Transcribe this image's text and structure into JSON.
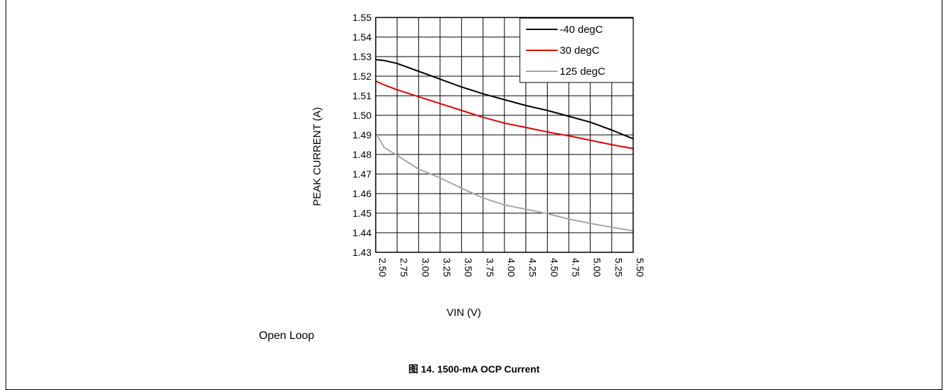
{
  "chart_data": {
    "type": "line",
    "xlabel": "VIN (V)",
    "ylabel": "PEAK CURRENT (A)",
    "xlim": [
      2.5,
      5.5
    ],
    "ylim": [
      1.43,
      1.55
    ],
    "xticks": [
      "2.50",
      "2.75",
      "3.00",
      "3.25",
      "3.50",
      "3.75",
      "4.00",
      "4.25",
      "4.50",
      "4.75",
      "5.00",
      "5.25",
      "5.50"
    ],
    "yticks": [
      "1.43",
      "1.44",
      "1.45",
      "1.46",
      "1.47",
      "1.48",
      "1.49",
      "1.50",
      "1.51",
      "1.52",
      "1.53",
      "1.54",
      "1.55"
    ],
    "grid": true,
    "legend_position": "top-right",
    "x": [
      2.5,
      2.6,
      2.75,
      3.0,
      3.25,
      3.5,
      3.75,
      4.0,
      4.25,
      4.5,
      4.75,
      5.0,
      5.25,
      5.5
    ],
    "series": [
      {
        "name": "-40 degC",
        "color": "#000000",
        "values": [
          1.5285,
          1.528,
          1.5265,
          1.5225,
          1.5185,
          1.5145,
          1.511,
          1.508,
          1.505,
          1.5025,
          1.4995,
          1.4965,
          1.4925,
          1.488
        ]
      },
      {
        "name": "30 degC",
        "color": "#e00000",
        "values": [
          1.5175,
          1.5155,
          1.513,
          1.5095,
          1.506,
          1.5025,
          1.499,
          1.496,
          1.4938,
          1.4915,
          1.4895,
          1.4873,
          1.485,
          1.483
        ]
      },
      {
        "name": "125 degC",
        "color": "#a6a6a6",
        "values": [
          1.491,
          1.4835,
          1.4795,
          1.4725,
          1.468,
          1.4628,
          1.4578,
          1.4542,
          1.452,
          1.4498,
          1.447,
          1.4448,
          1.4428,
          1.441
        ]
      }
    ]
  },
  "note": "Open Loop",
  "caption": "图 14. 1500-mA OCP Current"
}
